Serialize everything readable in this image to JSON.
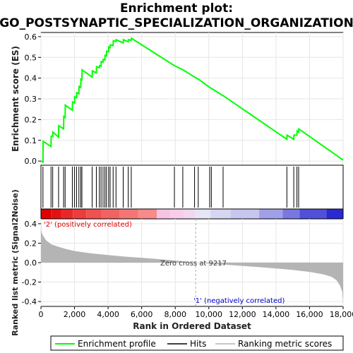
{
  "title_line1": "Enrichment plot:",
  "title_line2": "GO_POSTSYNAPTIC_SPECIALIZATION_ORGANIZATION",
  "labels": {
    "es_axis": "Enrichment score (ES)",
    "metric_axis": "Ranked list metric (Signal2Noise)",
    "x_axis": "Rank in Ordered Dataset",
    "pos_corr": "'2' (positively correlated)",
    "neg_corr": "'1' (negatively correlated)",
    "zero_cross": "Zero cross at 9217"
  },
  "legend": {
    "enrichment": "Enrichment profile",
    "hits": "Hits",
    "ranking": "Ranking metric scores"
  },
  "colors": {
    "enrichment_line": "#00ff00",
    "hit_line": "#000000",
    "metric_fill": "#b4b4b4",
    "pos_label": "#e00000",
    "neg_label": "#0000cc"
  },
  "chart_data": {
    "type": "line",
    "x_range": [
      0,
      18000
    ],
    "x_ticks": [
      0,
      2000,
      4000,
      6000,
      8000,
      10000,
      12000,
      14000,
      16000,
      18000
    ],
    "x_tick_labels": [
      "0",
      "2,000",
      "4,000",
      "6,000",
      "8,000",
      "10,000",
      "12,000",
      "14,000",
      "16,000",
      "18,000"
    ],
    "es_ylim": [
      -0.02,
      0.62
    ],
    "es_yticks": [
      0.0,
      0.1,
      0.2,
      0.3,
      0.4,
      0.5,
      0.6
    ],
    "es_ytick_labels": [
      "0.0",
      "0.1",
      "0.2",
      "0.3",
      "0.4",
      "0.5",
      "0.6"
    ],
    "metric_ylim": [
      -0.45,
      0.45
    ],
    "metric_yticks": [
      -0.4,
      -0.2,
      0.0,
      0.2,
      0.4
    ],
    "metric_ytick_labels": [
      "-0.4",
      "-0.2",
      "0.0",
      "0.2",
      "0.4"
    ],
    "zero_cross_rank": 9217,
    "series": [
      {
        "name": "Enrichment profile",
        "x": [
          0,
          120,
          130,
          600,
          610,
          700,
          710,
          1050,
          1060,
          1350,
          1360,
          1440,
          1450,
          1870,
          1880,
          2000,
          2010,
          2120,
          2130,
          2260,
          2270,
          2370,
          2380,
          2440,
          2450,
          3050,
          3060,
          3300,
          3310,
          3480,
          3490,
          3580,
          3590,
          3700,
          3710,
          3810,
          3820,
          3900,
          3910,
          4030,
          4040,
          4120,
          4130,
          4300,
          4310,
          4470,
          4480,
          4900,
          4910,
          5200,
          5210,
          5380,
          5390,
          7950,
          7960,
          8450,
          8460,
          9150,
          9160,
          9370,
          9380,
          10050,
          10060,
          10150,
          10160,
          10850,
          10860,
          14650,
          14660,
          15060,
          15070,
          15250,
          15260,
          15350,
          15360,
          18000
        ],
        "y": [
          0.0,
          -0.005,
          0.095,
          0.07,
          0.12,
          0.12,
          0.14,
          0.115,
          0.17,
          0.155,
          0.215,
          0.21,
          0.27,
          0.245,
          0.285,
          0.28,
          0.31,
          0.305,
          0.33,
          0.325,
          0.36,
          0.355,
          0.395,
          0.392,
          0.44,
          0.405,
          0.435,
          0.425,
          0.455,
          0.45,
          0.46,
          0.457,
          0.48,
          0.477,
          0.49,
          0.487,
          0.51,
          0.507,
          0.53,
          0.527,
          0.55,
          0.547,
          0.56,
          0.557,
          0.58,
          0.577,
          0.585,
          0.57,
          0.585,
          0.575,
          0.585,
          0.582,
          0.592,
          0.46,
          0.46,
          0.44,
          0.44,
          0.405,
          0.405,
          0.395,
          0.395,
          0.355,
          0.355,
          0.35,
          0.35,
          0.315,
          0.315,
          0.105,
          0.125,
          0.105,
          0.125,
          0.125,
          0.145,
          0.14,
          0.155,
          0.005
        ]
      }
    ],
    "hits": [
      120,
      600,
      700,
      1050,
      1350,
      1440,
      1870,
      2000,
      2120,
      2260,
      2370,
      2440,
      3050,
      3300,
      3480,
      3580,
      3700,
      3810,
      3900,
      4030,
      4120,
      4300,
      4470,
      4900,
      5200,
      5380,
      7950,
      8450,
      9150,
      9370,
      10050,
      10150,
      10850,
      14650,
      15060,
      15250,
      15350
    ],
    "metric_profile": {
      "rank": [
        0,
        20,
        60,
        150,
        300,
        600,
        1000,
        1500,
        2000,
        3000,
        4000,
        5000,
        6000,
        7000,
        8000,
        9217,
        10000,
        11000,
        12000,
        13000,
        14000,
        15000,
        16000,
        16800,
        17300,
        17600,
        17800,
        17950,
        18000
      ],
      "value": [
        0.44,
        0.33,
        0.3,
        0.27,
        0.23,
        0.19,
        0.165,
        0.14,
        0.12,
        0.095,
        0.078,
        0.062,
        0.05,
        0.036,
        0.022,
        0.0,
        -0.01,
        -0.022,
        -0.034,
        -0.046,
        -0.06,
        -0.075,
        -0.095,
        -0.12,
        -0.145,
        -0.18,
        -0.23,
        -0.3,
        -0.43
      ]
    },
    "color_bar": {
      "boundaries": [
        0,
        600,
        1200,
        1900,
        2700,
        3600,
        4700,
        5800,
        6900,
        7700,
        8500,
        9200,
        10100,
        11300,
        13000,
        14400,
        15400,
        17000,
        18000
      ],
      "colors": [
        "#dd0000",
        "#e31212",
        "#e82828",
        "#ec3c3c",
        "#ef5050",
        "#f16262",
        "#f37676",
        "#f78a8a",
        "#f7c3e3",
        "#f7cdea",
        "#f2d7ef",
        "#e5e5f5",
        "#d6d6f2",
        "#c6c6ef",
        "#a0a0e8",
        "#7878e0",
        "#5050d8",
        "#2a2ad0",
        "#0505b8"
      ]
    }
  }
}
